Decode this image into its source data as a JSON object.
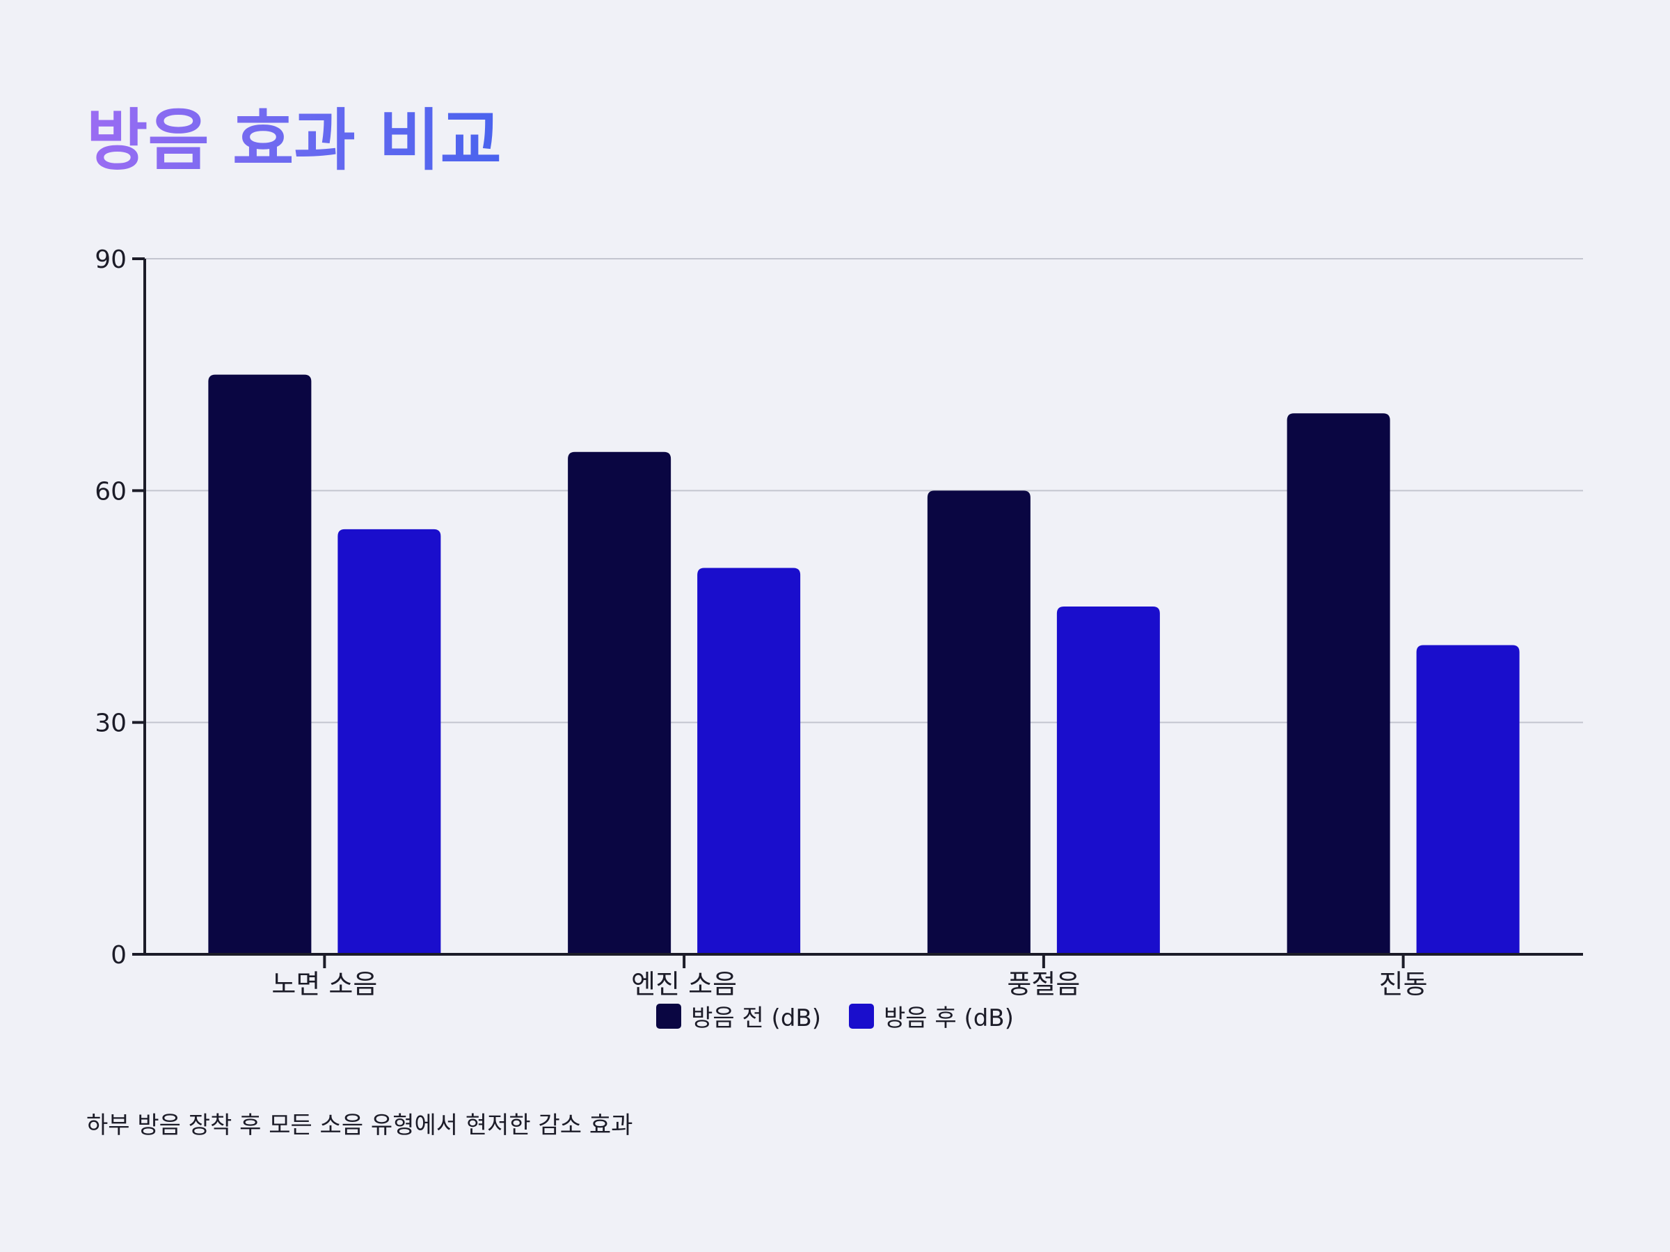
{
  "title": "방음 효과 비교",
  "footnote": "하부 방음 장착 후 모든 소음 유형에서 현저한 감소 효과",
  "colors": {
    "before": "#0a0642",
    "after": "#1a0ecc",
    "grid": "#c3c5cf",
    "axis": "#1c1c28"
  },
  "chart_data": {
    "type": "bar",
    "categories": [
      "노면 소음",
      "엔진 소음",
      "풍절음",
      "진동"
    ],
    "series": [
      {
        "name": "방음 전 (dB)",
        "values": [
          75,
          65,
          60,
          70
        ]
      },
      {
        "name": "방음 후 (dB)",
        "values": [
          55,
          50,
          45,
          40
        ]
      }
    ],
    "yticks": [
      0,
      30,
      60,
      90
    ],
    "ylim": [
      0,
      90
    ],
    "grid": true,
    "legend_position": "bottom-center"
  }
}
